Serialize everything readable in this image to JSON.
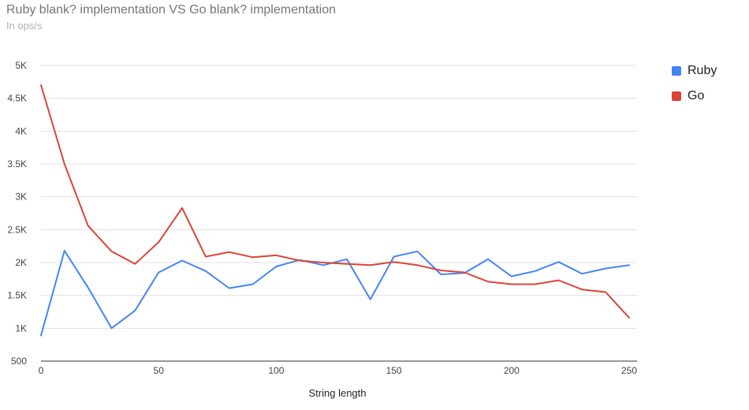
{
  "chart_data": {
    "type": "line",
    "title": "Ruby blank? implementation VS Go blank? implementation",
    "subtitle": "In ops/s",
    "xlabel": "String length",
    "ylabel": "",
    "xlim": [
      0,
      250
    ],
    "ylim": [
      500,
      5000
    ],
    "x_ticks": [
      0,
      50,
      100,
      150,
      200,
      250
    ],
    "y_ticks": [
      500,
      1000,
      1500,
      2000,
      2500,
      3000,
      3500,
      4000,
      4500,
      5000
    ],
    "y_tick_labels": [
      "500",
      "1K",
      "1.5K",
      "2K",
      "2.5K",
      "3K",
      "3.5K",
      "4K",
      "4.5K",
      "5K"
    ],
    "grid": true,
    "legend_position": "right",
    "x": [
      0,
      10,
      20,
      30,
      40,
      50,
      60,
      70,
      80,
      90,
      100,
      110,
      120,
      130,
      140,
      150,
      160,
      170,
      180,
      190,
      200,
      210,
      220,
      230,
      240,
      250
    ],
    "series": [
      {
        "name": "Ruby",
        "color": "#4285f4",
        "values": [
          890,
          2180,
          1620,
          1000,
          1270,
          1850,
          2030,
          1870,
          1610,
          1670,
          1940,
          2040,
          1960,
          2050,
          1440,
          2090,
          2170,
          1820,
          1840,
          2050,
          1790,
          1870,
          2010,
          1830,
          1910,
          1960
        ]
      },
      {
        "name": "Go",
        "color": "#db4437",
        "values": [
          4700,
          3500,
          2560,
          2170,
          1980,
          2310,
          2830,
          2090,
          2160,
          2080,
          2110,
          2030,
          2000,
          1980,
          1960,
          2010,
          1960,
          1880,
          1850,
          1710,
          1670,
          1670,
          1730,
          1590,
          1550,
          1160
        ]
      }
    ]
  }
}
